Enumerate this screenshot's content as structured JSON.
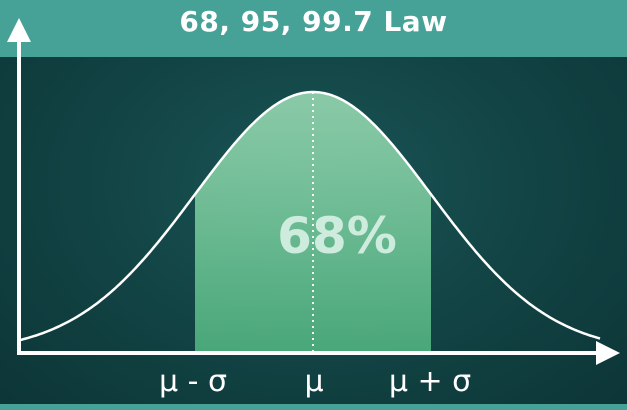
{
  "title": "68, 95, 99.7 Law",
  "region_label": "68%",
  "axis_labels": {
    "minus_sigma": "μ - σ",
    "mean": "μ",
    "plus_sigma": "μ + σ"
  },
  "colors": {
    "title_bar": "#46a196",
    "background": "#134546",
    "shaded_region": "#6fc99a",
    "curve": "#ffffff",
    "axis": "#ffffff"
  },
  "shaded_sigma_range": [
    -1,
    1
  ]
}
